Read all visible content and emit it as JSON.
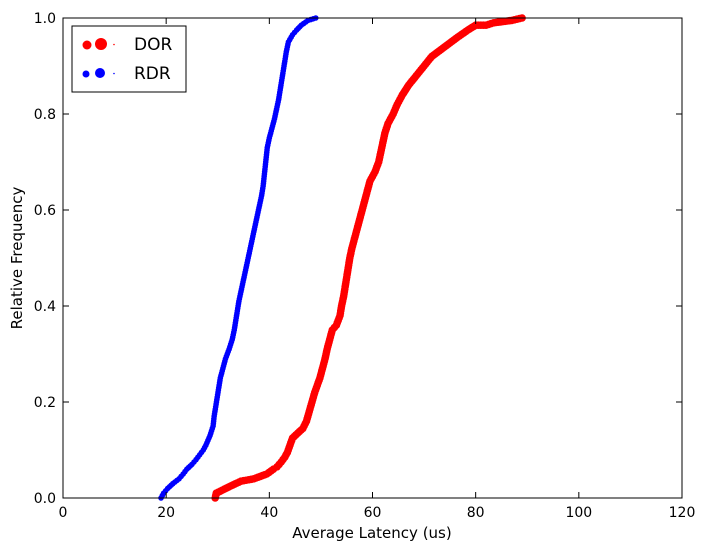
{
  "chart_data": {
    "type": "scatter",
    "title": "",
    "xlabel": "Average Latency (us)",
    "ylabel": "Relative Frequency",
    "xlim": [
      0,
      120
    ],
    "ylim": [
      0,
      1.0
    ],
    "x_ticks": [
      "0",
      "20",
      "40",
      "60",
      "80",
      "100",
      "120"
    ],
    "y_ticks": [
      "0.0",
      "0.2",
      "0.4",
      "0.6",
      "0.8",
      "1.0"
    ],
    "grid": false,
    "legend_position": "top-left",
    "series": [
      {
        "name": "DOR",
        "color": "#ff0000",
        "marker": "large-dot",
        "points": [
          [
            29.5,
            0.0
          ],
          [
            29.7,
            0.01
          ],
          [
            32.5,
            0.025
          ],
          [
            34.5,
            0.035
          ],
          [
            37.0,
            0.04
          ],
          [
            39.5,
            0.05
          ],
          [
            40.8,
            0.06
          ],
          [
            41.5,
            0.065
          ],
          [
            42.3,
            0.075
          ],
          [
            43.0,
            0.085
          ],
          [
            43.5,
            0.095
          ],
          [
            44.0,
            0.11
          ],
          [
            44.5,
            0.125
          ],
          [
            45.5,
            0.135
          ],
          [
            46.5,
            0.145
          ],
          [
            47.2,
            0.16
          ],
          [
            47.6,
            0.175
          ],
          [
            48.0,
            0.19
          ],
          [
            48.4,
            0.205
          ],
          [
            48.8,
            0.22
          ],
          [
            49.3,
            0.235
          ],
          [
            49.8,
            0.25
          ],
          [
            50.3,
            0.27
          ],
          [
            50.8,
            0.29
          ],
          [
            51.2,
            0.31
          ],
          [
            51.7,
            0.33
          ],
          [
            52.2,
            0.35
          ],
          [
            53.0,
            0.36
          ],
          [
            53.7,
            0.38
          ],
          [
            54.0,
            0.4
          ],
          [
            54.4,
            0.42
          ],
          [
            54.7,
            0.44
          ],
          [
            55.0,
            0.46
          ],
          [
            55.3,
            0.48
          ],
          [
            55.6,
            0.5
          ],
          [
            56.0,
            0.52
          ],
          [
            56.5,
            0.54
          ],
          [
            57.0,
            0.56
          ],
          [
            57.5,
            0.58
          ],
          [
            58.0,
            0.6
          ],
          [
            58.5,
            0.62
          ],
          [
            59.0,
            0.64
          ],
          [
            59.5,
            0.66
          ],
          [
            60.5,
            0.68
          ],
          [
            61.2,
            0.7
          ],
          [
            61.6,
            0.72
          ],
          [
            62.0,
            0.74
          ],
          [
            62.4,
            0.76
          ],
          [
            63.0,
            0.78
          ],
          [
            64.0,
            0.8
          ],
          [
            64.8,
            0.82
          ],
          [
            65.8,
            0.84
          ],
          [
            67.0,
            0.86
          ],
          [
            68.5,
            0.88
          ],
          [
            70.0,
            0.9
          ],
          [
            71.5,
            0.92
          ],
          [
            74.0,
            0.94
          ],
          [
            76.5,
            0.96
          ],
          [
            78.5,
            0.975
          ],
          [
            80.0,
            0.985
          ],
          [
            82.0,
            0.985
          ],
          [
            83.5,
            0.99
          ],
          [
            87.0,
            0.995
          ],
          [
            89.0,
            1.0
          ]
        ]
      },
      {
        "name": "RDR",
        "color": "#0000ff",
        "marker": "small-dot",
        "points": [
          [
            19.0,
            0.0
          ],
          [
            19.5,
            0.01
          ],
          [
            20.3,
            0.02
          ],
          [
            21.3,
            0.03
          ],
          [
            22.5,
            0.04
          ],
          [
            23.3,
            0.05
          ],
          [
            24.0,
            0.06
          ],
          [
            25.0,
            0.07
          ],
          [
            25.8,
            0.08
          ],
          [
            26.5,
            0.09
          ],
          [
            27.2,
            0.1
          ],
          [
            27.7,
            0.11
          ],
          [
            28.1,
            0.12
          ],
          [
            28.5,
            0.13
          ],
          [
            28.8,
            0.14
          ],
          [
            29.1,
            0.15
          ],
          [
            29.3,
            0.17
          ],
          [
            29.6,
            0.19
          ],
          [
            29.9,
            0.21
          ],
          [
            30.2,
            0.23
          ],
          [
            30.5,
            0.25
          ],
          [
            31.0,
            0.27
          ],
          [
            31.5,
            0.29
          ],
          [
            32.2,
            0.31
          ],
          [
            32.8,
            0.33
          ],
          [
            33.2,
            0.35
          ],
          [
            33.5,
            0.37
          ],
          [
            33.8,
            0.39
          ],
          [
            34.1,
            0.41
          ],
          [
            34.5,
            0.43
          ],
          [
            34.9,
            0.45
          ],
          [
            35.3,
            0.47
          ],
          [
            35.7,
            0.49
          ],
          [
            36.1,
            0.51
          ],
          [
            36.5,
            0.53
          ],
          [
            36.9,
            0.55
          ],
          [
            37.3,
            0.57
          ],
          [
            37.7,
            0.59
          ],
          [
            38.1,
            0.61
          ],
          [
            38.5,
            0.63
          ],
          [
            38.8,
            0.65
          ],
          [
            39.0,
            0.67
          ],
          [
            39.2,
            0.69
          ],
          [
            39.4,
            0.71
          ],
          [
            39.6,
            0.73
          ],
          [
            40.0,
            0.75
          ],
          [
            40.5,
            0.77
          ],
          [
            41.0,
            0.79
          ],
          [
            41.4,
            0.81
          ],
          [
            41.8,
            0.83
          ],
          [
            42.1,
            0.85
          ],
          [
            42.4,
            0.87
          ],
          [
            42.7,
            0.89
          ],
          [
            43.0,
            0.91
          ],
          [
            43.3,
            0.93
          ],
          [
            43.7,
            0.95
          ],
          [
            44.5,
            0.965
          ],
          [
            45.3,
            0.975
          ],
          [
            46.2,
            0.985
          ],
          [
            47.5,
            0.995
          ],
          [
            49.0,
            1.0
          ]
        ]
      }
    ]
  }
}
